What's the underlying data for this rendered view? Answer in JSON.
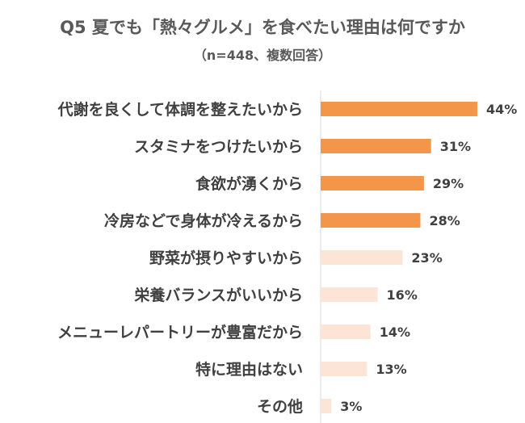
{
  "chart_data": {
    "type": "bar",
    "orientation": "horizontal",
    "title": "Q5 夏でも「熱々グルメ」を食べたい理由は何ですか",
    "subtitle": "（n=448、複数回答）",
    "categories": [
      "代謝を良くして体調を整えたいから",
      "スタミナをつけたいから",
      "食欲が湧くから",
      "冷房などで身体が冷えるから",
      "野菜が摂りやすいから",
      "栄養バランスがいいから",
      "メニューレパートリーが豊富だから",
      "特に理由はない",
      "その他"
    ],
    "values": [
      44,
      31,
      29,
      28,
      23,
      16,
      14,
      13,
      3
    ],
    "value_labels": [
      "44%",
      "31%",
      "29%",
      "28%",
      "23%",
      "16%",
      "14%",
      "13%",
      "3%"
    ],
    "highlight_count": 4,
    "xlim": [
      0,
      50
    ],
    "colors": {
      "highlight": "#F4964A",
      "normal": "#FCE4D6",
      "axis": "#D9D9D9"
    },
    "grid": false,
    "legend": "none"
  }
}
